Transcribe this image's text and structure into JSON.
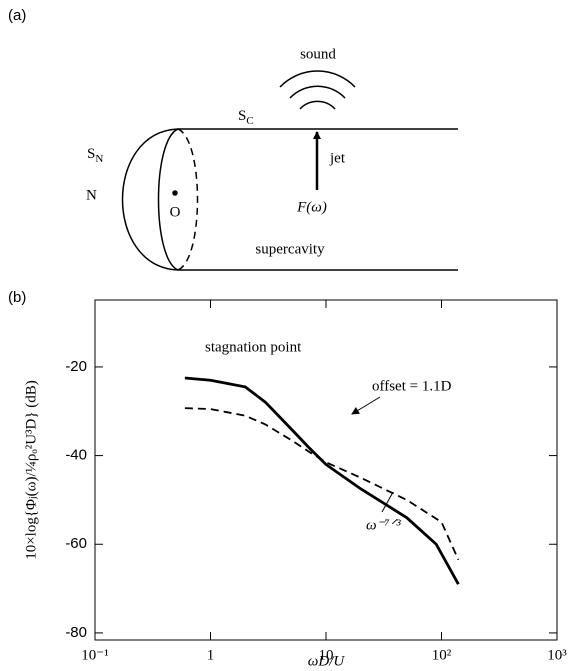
{
  "diagram": {
    "panel_label": "(a)",
    "labels": {
      "sound": "sound",
      "sc": {
        "text": "S",
        "sub": "C"
      },
      "sn": {
        "text": "S",
        "sub": "N"
      },
      "n": "N",
      "o": "O",
      "jet": "jet",
      "force": "F(ω)",
      "supercavity": "supercavity"
    }
  },
  "chart_data": {
    "type": "line",
    "panel_label": "(b)",
    "xlabel": "ωD/U",
    "ylabel": "10×log{Φⱼ(ω)/¼ρₒ²U³D} (dB)",
    "xscale": "log",
    "xlim": [
      0.1,
      1000
    ],
    "xticks": [
      {
        "value": 0.1,
        "label": "10⁻¹"
      },
      1,
      10,
      {
        "value": 100,
        "label": "10²"
      },
      {
        "value": 1000,
        "label": "10³"
      }
    ],
    "ylim": [
      -81.6,
      -4.9
    ],
    "yticks": [
      -20,
      -40,
      -60,
      -80
    ],
    "annotations": {
      "stagnation": "stagnation point",
      "offset": "offset = 1.1D",
      "slope": "ω⁻⁷ᐟ³"
    },
    "series": [
      {
        "color": "#000000",
        "style": "solid",
        "x": [
          0.6,
          1,
          2,
          3,
          5,
          7,
          10,
          20,
          50,
          90,
          140
        ],
        "values": [
          -22.5,
          -23,
          -24.5,
          -28,
          -34,
          -38,
          -42,
          -47.5,
          -54,
          -60,
          -69
        ]
      },
      {
        "color": "#000000",
        "style": "dashed",
        "x": [
          0.6,
          1,
          2,
          3,
          5,
          7,
          10,
          20,
          50,
          100,
          140
        ],
        "values": [
          -29.3,
          -29.5,
          -31,
          -33,
          -36.5,
          -39,
          -41.5,
          -45,
          -50,
          -55,
          -63.5
        ]
      }
    ]
  }
}
